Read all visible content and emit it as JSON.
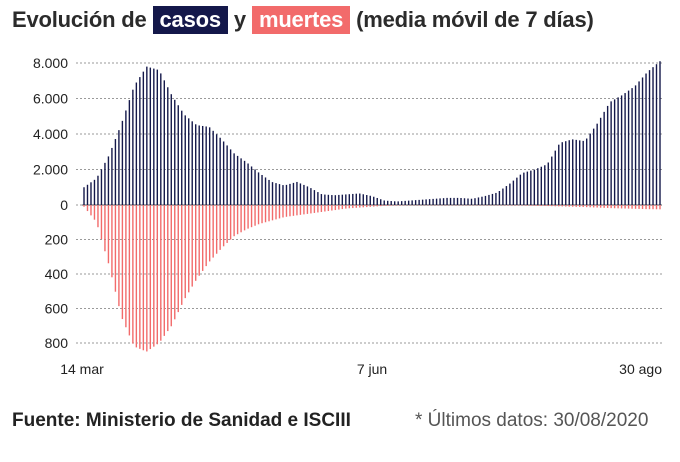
{
  "title": {
    "prefix": "Evolución de",
    "cases_tag": "casos",
    "connector": "y",
    "deaths_tag": "muertes",
    "suffix": "(media móvil de 7 días)"
  },
  "source": "Fuente: Ministerio de Sanidad e ISCIII",
  "note": "* Últimos datos: 30/08/2020",
  "colors": {
    "cases": "#14184a",
    "deaths": "#f26b6b",
    "grid": "#9a9a9a",
    "tag_text": "#ffffff"
  },
  "chart_data": {
    "type": "bar",
    "title": "Evolución de casos y muertes (media móvil de 7 días)",
    "x_labels": [
      "14 mar",
      "7 jun",
      "30 ago"
    ],
    "upper_axis": {
      "ticks": [
        "8.000",
        "6.000",
        "4.000",
        "2.000",
        "0"
      ],
      "range": [
        0,
        8000
      ]
    },
    "lower_axis": {
      "ticks": [
        "200",
        "400",
        "600",
        "800"
      ],
      "range": [
        0,
        800
      ]
    },
    "series": [
      {
        "name": "casos",
        "values": [
          1000,
          1500,
          2800,
          4600,
          6700,
          7800,
          7600,
          6200,
          5100,
          4500,
          4400,
          3700,
          2900,
          2400,
          1800,
          1300,
          1100,
          1300,
          1000,
          600,
          550,
          600,
          650,
          500,
          250,
          200,
          250,
          300,
          350,
          400,
          400,
          350,
          500,
          700,
          1200,
          1800,
          2000,
          2300,
          3500,
          3700,
          3600,
          4600,
          5800,
          6200,
          6700,
          7500,
          8100
        ]
      },
      {
        "name": "muertes",
        "values": [
          10,
          100,
          350,
          650,
          820,
          850,
          800,
          700,
          550,
          430,
          330,
          250,
          180,
          140,
          110,
          90,
          70,
          60,
          50,
          40,
          30,
          20,
          15,
          10,
          5,
          3,
          2,
          2,
          2,
          2,
          2,
          2,
          2,
          2,
          3,
          3,
          5,
          6,
          8,
          10,
          12,
          15,
          18,
          20,
          22,
          24,
          25
        ]
      }
    ]
  }
}
